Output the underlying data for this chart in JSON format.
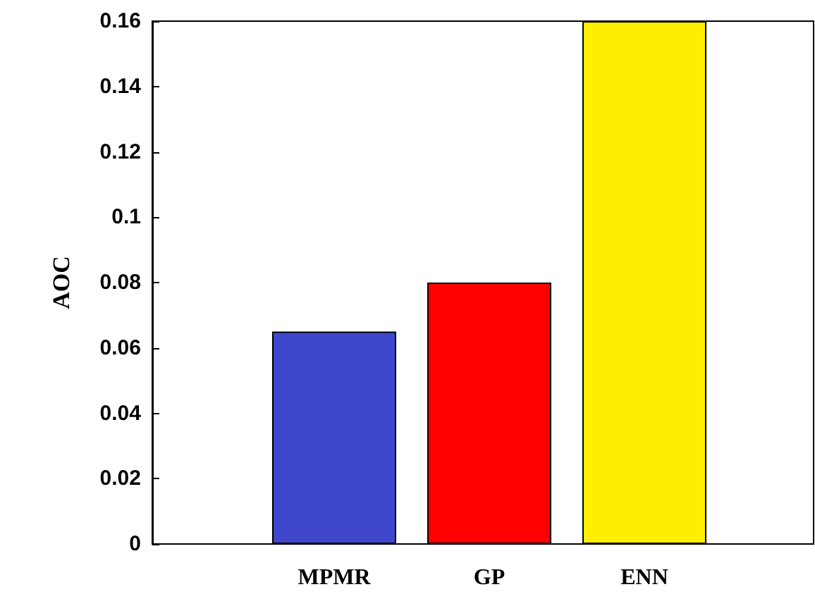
{
  "chart_data": {
    "type": "bar",
    "ylabel": "AOC",
    "categories": [
      "MPMR",
      "GP",
      "ENN"
    ],
    "colors": [
      "#3f48cc",
      "#ff0000",
      "#ffee00"
    ],
    "values": [
      0.065,
      0.08,
      0.16
    ],
    "ylim": [
      0,
      0.16
    ],
    "yticks": [
      0,
      0.02,
      0.04,
      0.06,
      0.08,
      0.1,
      0.12,
      0.14,
      0.16
    ],
    "grid": false
  }
}
